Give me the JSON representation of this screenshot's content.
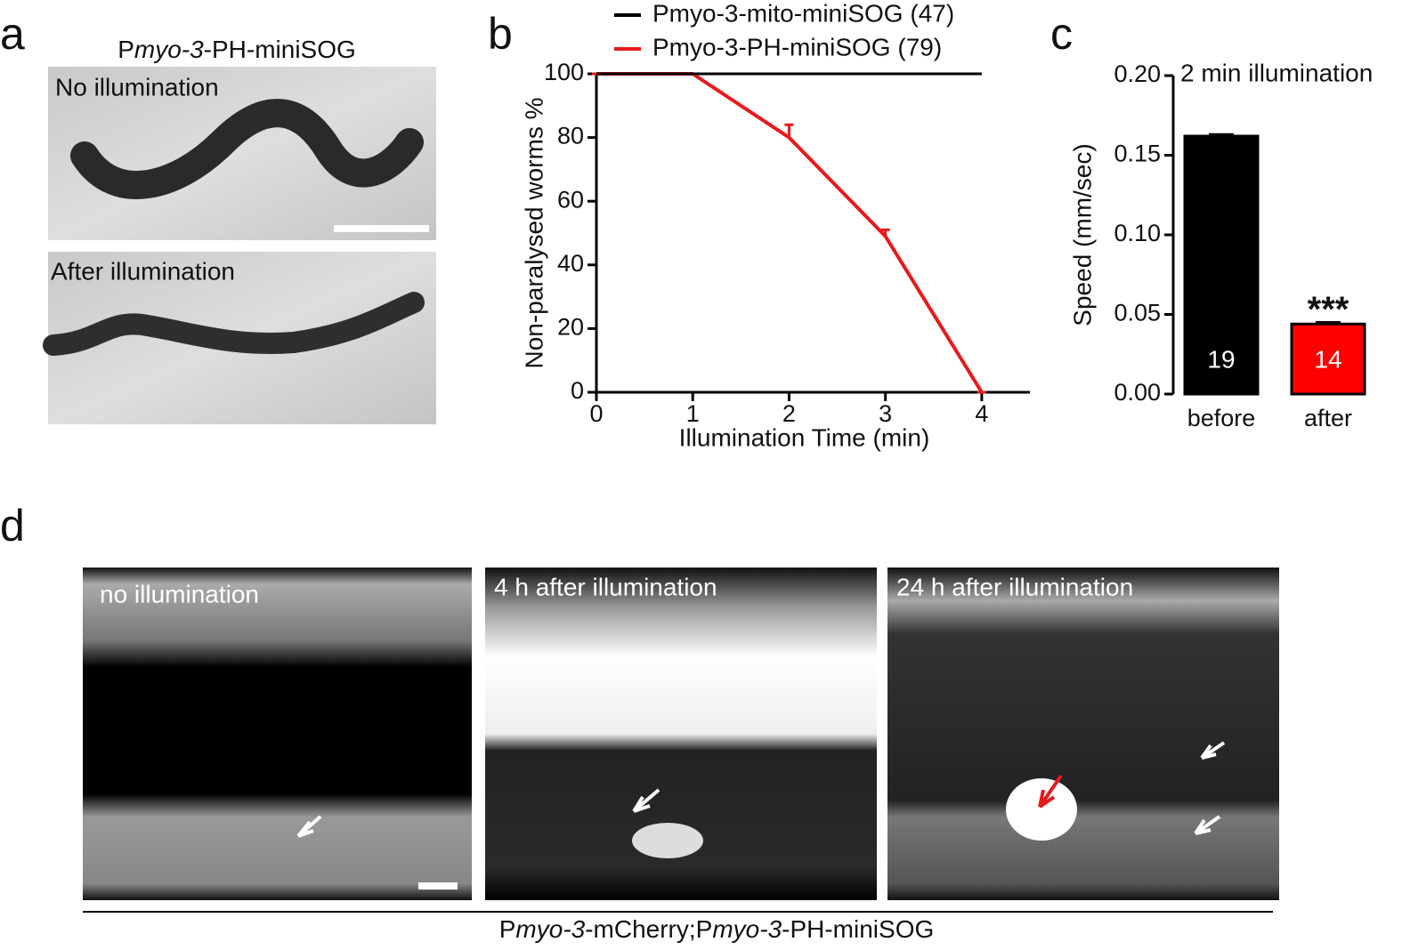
{
  "panel_labels": [
    "a",
    "b",
    "c",
    "d"
  ],
  "panel_a": {
    "title_parts": [
      "P",
      "myo-3",
      "-PH-miniSOG"
    ],
    "top_label": "No illumination",
    "bottom_label": "After illumination"
  },
  "panel_d": {
    "image_labels": [
      "no illumination",
      "4 h after illumination",
      "24 h after illumination"
    ],
    "caption_parts": [
      "P",
      "myo-3",
      "-mCherry;P",
      "myo-3",
      "-PH-miniSOG"
    ]
  },
  "chart_data": [
    {
      "type": "line",
      "xlabel": "Illumination Time (min)",
      "ylabel": "Non-paralysed worms %",
      "x": [
        0,
        1,
        2,
        3,
        4
      ],
      "xlim": [
        0,
        4.5
      ],
      "xticks": [
        0,
        1,
        2,
        3,
        4
      ],
      "ylim": [
        0,
        100
      ],
      "yticks": [
        0,
        20,
        40,
        60,
        80,
        100
      ],
      "series": [
        {
          "name": "Pmyo-3-mito-miniSOG (47)",
          "color": "#000000",
          "values": [
            100,
            100,
            100,
            100,
            100
          ]
        },
        {
          "name": "Pmyo-3-PH-miniSOG (79)",
          "color": "#e8191b",
          "values": [
            100,
            100,
            80,
            49,
            0
          ],
          "errors": [
            0,
            0,
            4,
            2,
            0
          ]
        }
      ]
    },
    {
      "type": "bar",
      "title": "2 min illumination",
      "ylabel": "Speed (mm/sec)",
      "categories": [
        "before",
        "after"
      ],
      "values": [
        0.162,
        0.044
      ],
      "errors": [
        0.001,
        0.001
      ],
      "colors": [
        "#000000",
        "#ff0000"
      ],
      "n": [
        19,
        14
      ],
      "significance": "***",
      "ylim": [
        0,
        0.2
      ],
      "yticks": [
        {
          "value": 0,
          "label": "0.00"
        },
        {
          "value": 0.05,
          "label": "0.05"
        },
        {
          "value": 0.1,
          "label": "0.10"
        },
        {
          "value": 0.15,
          "label": "0.15"
        },
        {
          "value": 0.2,
          "label": "0.20"
        }
      ]
    }
  ]
}
